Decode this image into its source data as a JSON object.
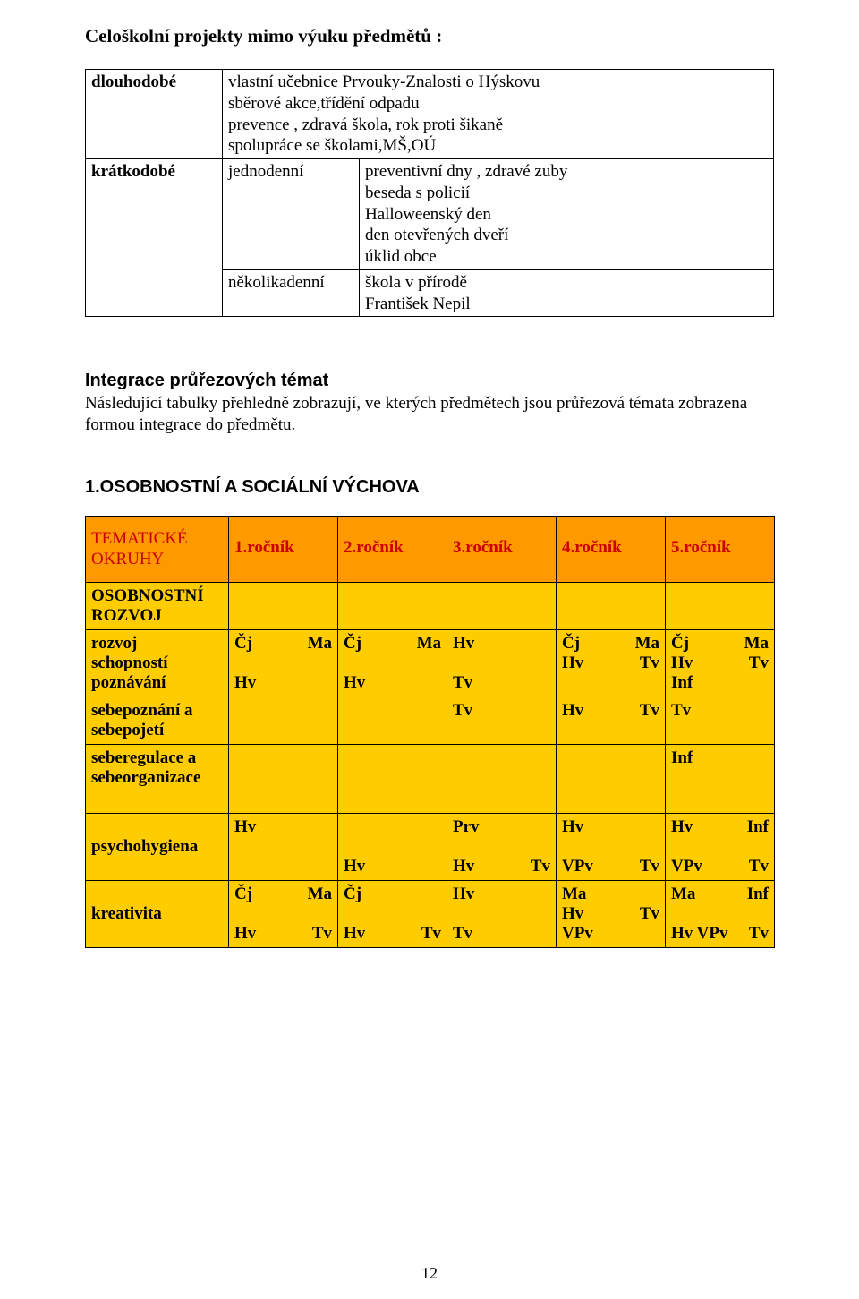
{
  "heading": "Celoškolní projekty mimo výuku předmětů :",
  "t1": {
    "rows": [
      {
        "label": "dlouhodobé",
        "mid": "",
        "body": [
          "vlastní učebnice Prvouky-Znalosti o Hýskovu",
          "sběrové akce,třídění odpadu",
          "prevence , zdravá škola, rok proti šikaně",
          "spolupráce se školami,MŠ,OÚ"
        ]
      },
      {
        "label": "krátkodobé",
        "mid": "jednodenní",
        "body": [
          "preventivní dny , zdravé zuby",
          "beseda s policií",
          "Halloweenský den",
          "den otevřených dveří",
          "úklid obce"
        ]
      },
      {
        "label": "",
        "mid": "několikadenní",
        "body": [
          "škola v přírodě",
          "František Nepil"
        ]
      }
    ]
  },
  "sec1": {
    "title": "Integrace průřezových témat",
    "body": "Následující tabulky přehledně zobrazují, ve kterých předmětech jsou průřezová témata zobrazena formou integrace do předmětu."
  },
  "sec2": {
    "title": "1.OSOBNOSTNÍ A SOCIÁLNÍ VÝCHOVA"
  },
  "t2": {
    "colors": {
      "header_bg": "#ff9900",
      "subhead_bg": "#ffcc00",
      "header_fg": "#cc0000"
    },
    "head": {
      "left": [
        "TEMATICKÉ",
        "OKRUHY"
      ],
      "grades": [
        "1.ročník",
        "2.ročník",
        "3.ročník",
        "4.ročník",
        "5.ročník"
      ]
    },
    "subhead": [
      "OSOBNOSTNÍ",
      "ROZVOJ"
    ],
    "rows": [
      {
        "label": [
          "rozvoj",
          "schopností",
          "poznávání"
        ],
        "cells": [
          [
            [
              "Čj",
              "Ma"
            ],
            [
              "",
              ""
            ],
            [
              "Hv",
              ""
            ]
          ],
          [
            [
              "Čj",
              "Ma"
            ],
            [
              "",
              ""
            ],
            [
              "Hv",
              ""
            ]
          ],
          [
            [
              "Hv",
              ""
            ],
            [
              "",
              ""
            ],
            [
              "Tv",
              ""
            ]
          ],
          [
            [
              "Čj",
              "Ma"
            ],
            [
              "Hv",
              "Tv"
            ],
            [
              "",
              ""
            ]
          ],
          [
            [
              "Čj",
              "Ma"
            ],
            [
              "Hv",
              "Tv"
            ],
            [
              "Inf",
              ""
            ]
          ]
        ]
      },
      {
        "label": [
          "sebepoznání a",
          "sebepojetí"
        ],
        "cells": [
          [],
          [],
          [
            [
              "Tv",
              ""
            ]
          ],
          [
            [
              "Hv",
              "Tv"
            ]
          ],
          [
            [
              "Tv",
              ""
            ]
          ]
        ]
      },
      {
        "label": [
          "seberegulace a",
          "sebeorganizace"
        ],
        "tall": true,
        "cells": [
          [],
          [],
          [],
          [],
          [
            [
              "Inf",
              ""
            ]
          ]
        ]
      },
      {
        "label": [
          "",
          "psychohygiena"
        ],
        "cells": [
          [
            [
              "Hv",
              ""
            ],
            [
              "",
              ""
            ],
            [
              "",
              ""
            ]
          ],
          [
            [
              "",
              ""
            ],
            [
              "",
              ""
            ],
            [
              "Hv",
              ""
            ]
          ],
          [
            [
              "Prv",
              ""
            ],
            [
              "",
              ""
            ],
            [
              "Hv",
              "Tv"
            ]
          ],
          [
            [
              "Hv",
              ""
            ],
            [
              "",
              ""
            ],
            [
              "VPv",
              "Tv"
            ]
          ],
          [
            [
              "Hv",
              "Inf"
            ],
            [
              "",
              ""
            ],
            [
              "VPv",
              "Tv"
            ]
          ]
        ]
      },
      {
        "label": [
          "",
          "kreativita"
        ],
        "cells": [
          [
            [
              "Čj",
              "Ma"
            ],
            [
              "",
              ""
            ],
            [
              "Hv",
              "Tv"
            ]
          ],
          [
            [
              "Čj",
              ""
            ],
            [
              "",
              ""
            ],
            [
              "Hv",
              "Tv"
            ]
          ],
          [
            [
              "Hv",
              ""
            ],
            [
              "",
              ""
            ],
            [
              "Tv",
              ""
            ]
          ],
          [
            [
              "Ma",
              ""
            ],
            [
              "Hv",
              "Tv"
            ],
            [
              "VPv",
              ""
            ]
          ],
          [
            [
              "Ma",
              "Inf"
            ],
            [
              "",
              ""
            ],
            [
              "Hv VPv",
              "Tv"
            ]
          ]
        ]
      }
    ]
  },
  "pagenum": "12"
}
